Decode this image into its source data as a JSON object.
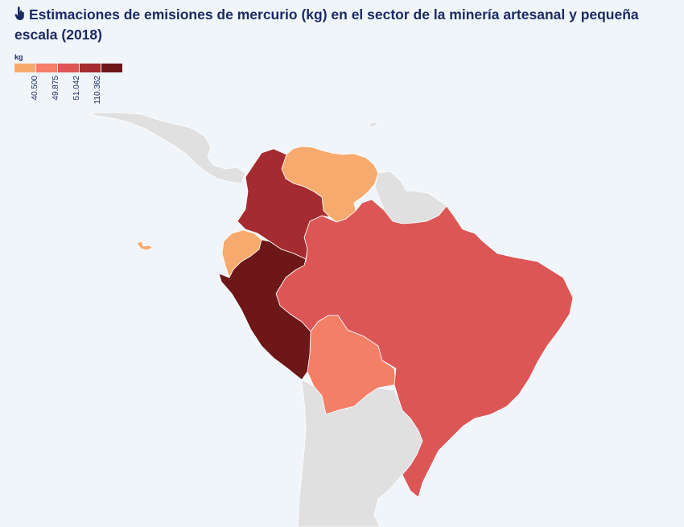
{
  "title": "Estimaciones de emisiones de mercurio (kg) en el sector de la minería artesanal y pequeña escala (2018)",
  "icon": "pointer-hand-icon",
  "legend": {
    "unit": "kg",
    "breaks": [
      "40.500",
      "49.875",
      "51.042",
      "110.362"
    ],
    "colors": [
      "#f7aa6d",
      "#f47f67",
      "#dc5656",
      "#a42b2f",
      "#6d1718"
    ]
  },
  "colors": {
    "background": "#f0f5fa",
    "land_no_data": "#e0e0e0",
    "title": "#1c2a63"
  },
  "map": {
    "countries": [
      {
        "name": "Venezuela",
        "class": 0
      },
      {
        "name": "Ecuador",
        "class": 0
      },
      {
        "name": "Bolivia",
        "class": 1
      },
      {
        "name": "Brasil",
        "class": 2
      },
      {
        "name": "Colombia",
        "class": 3
      },
      {
        "name": "Perú",
        "class": 4
      }
    ]
  }
}
